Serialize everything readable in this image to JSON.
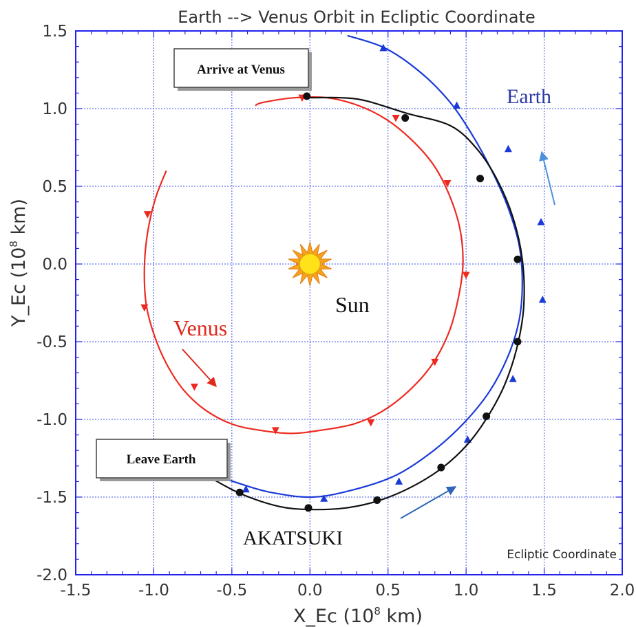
{
  "chart_data": {
    "type": "line",
    "title": "Earth --> Venus Orbit in Ecliptic Coordinate",
    "xlabel": "X_Ec  (10",
    "xlabel_sup": "8",
    "xlabel_unit": " km)",
    "ylabel": "Y_Ec  (10",
    "ylabel_sup": "8",
    "ylabel_unit": " km)",
    "xlim": [
      -1.5,
      2.0
    ],
    "ylim": [
      -2.0,
      1.5
    ],
    "xticks": [
      "-1.5",
      "-1.0",
      "-0.5",
      "0.0",
      "0.5",
      "1.0",
      "1.5",
      "2.0"
    ],
    "yticks": [
      "1.5",
      "1.0",
      "0.5",
      "0.0",
      "-0.5",
      "-1.0",
      "-1.5",
      "-2.0"
    ],
    "grid": true,
    "corner_label": "Ecliptic Coordinate",
    "series": [
      {
        "name": "Earth",
        "color": "#1a3ad8",
        "label_color": "#2a3aa8",
        "points": [
          [
            0.24,
            1.47
          ],
          [
            0.48,
            1.39
          ],
          [
            0.7,
            1.24
          ],
          [
            0.89,
            1.05
          ],
          [
            1.04,
            0.83
          ],
          [
            1.17,
            0.59
          ],
          [
            1.27,
            0.36
          ],
          [
            1.34,
            0.12
          ],
          [
            1.36,
            -0.12
          ],
          [
            1.34,
            -0.36
          ],
          [
            1.27,
            -0.59
          ],
          [
            1.15,
            -0.82
          ],
          [
            0.98,
            -1.03
          ],
          [
            0.78,
            -1.21
          ],
          [
            0.55,
            -1.36
          ],
          [
            0.29,
            -1.45
          ],
          [
            0.02,
            -1.5
          ],
          [
            -0.25,
            -1.47
          ],
          [
            -0.46,
            -1.41
          ],
          [
            -0.63,
            -1.35
          ]
        ],
        "markers": [
          [
            0.47,
            1.39
          ],
          [
            0.94,
            1.02
          ],
          [
            1.27,
            0.74
          ],
          [
            1.48,
            0.27
          ],
          [
            1.49,
            -0.23
          ],
          [
            1.3,
            -0.74
          ],
          [
            1.01,
            -1.13
          ],
          [
            0.57,
            -1.4
          ],
          [
            0.09,
            -1.51
          ],
          [
            -0.41,
            -1.45
          ]
        ],
        "marker_shape": "triangle-up"
      },
      {
        "name": "Venus",
        "color": "#ee2a20",
        "label_color": "#e02a1c",
        "points": [
          [
            -0.92,
            0.6
          ],
          [
            -0.99,
            0.42
          ],
          [
            -1.04,
            0.2
          ],
          [
            -1.06,
            -0.02
          ],
          [
            -1.05,
            -0.25
          ],
          [
            -1.0,
            -0.45
          ],
          [
            -0.92,
            -0.64
          ],
          [
            -0.81,
            -0.81
          ],
          [
            -0.67,
            -0.94
          ],
          [
            -0.5,
            -1.03
          ],
          [
            -0.32,
            -1.07
          ],
          [
            -0.12,
            -1.09
          ],
          [
            0.07,
            -1.07
          ],
          [
            0.28,
            -1.03
          ],
          [
            0.46,
            -0.95
          ],
          [
            0.63,
            -0.82
          ],
          [
            0.78,
            -0.65
          ],
          [
            0.89,
            -0.44
          ],
          [
            0.95,
            -0.22
          ],
          [
            0.98,
            0.0
          ],
          [
            0.96,
            0.23
          ],
          [
            0.89,
            0.45
          ],
          [
            0.79,
            0.64
          ],
          [
            0.65,
            0.8
          ],
          [
            0.49,
            0.93
          ],
          [
            0.31,
            1.02
          ],
          [
            0.11,
            1.07
          ],
          [
            -0.1,
            1.07
          ],
          [
            -0.3,
            1.04
          ],
          [
            -0.35,
            1.02
          ]
        ],
        "markers": [
          [
            -1.04,
            0.32
          ],
          [
            -1.06,
            -0.28
          ],
          [
            -0.74,
            -0.79
          ],
          [
            -0.22,
            -1.07
          ],
          [
            0.39,
            -1.02
          ],
          [
            0.8,
            -0.63
          ],
          [
            1.0,
            -0.07
          ],
          [
            0.88,
            0.52
          ],
          [
            0.55,
            0.94
          ],
          [
            -0.05,
            1.07
          ]
        ],
        "marker_shape": "triangle-down"
      },
      {
        "name": "AKATSUKI",
        "color": "#111111",
        "label_color": "#111111",
        "points": [
          [
            -0.63,
            -1.38
          ],
          [
            -0.44,
            -1.48
          ],
          [
            -0.2,
            -1.56
          ],
          [
            0.0,
            -1.58
          ],
          [
            0.23,
            -1.57
          ],
          [
            0.45,
            -1.52
          ],
          [
            0.66,
            -1.43
          ],
          [
            0.85,
            -1.31
          ],
          [
            1.01,
            -1.16
          ],
          [
            1.14,
            -0.98
          ],
          [
            1.25,
            -0.77
          ],
          [
            1.33,
            -0.52
          ],
          [
            1.37,
            -0.26
          ],
          [
            1.36,
            0.03
          ],
          [
            1.3,
            0.3
          ],
          [
            1.2,
            0.54
          ],
          [
            1.07,
            0.74
          ],
          [
            0.9,
            0.89
          ],
          [
            0.62,
            0.97
          ],
          [
            0.36,
            1.05
          ],
          [
            0.2,
            1.07
          ],
          [
            0.0,
            1.07
          ]
        ],
        "markers": [
          [
            -0.45,
            -1.47
          ],
          [
            -0.01,
            -1.57
          ],
          [
            0.43,
            -1.52
          ],
          [
            0.84,
            -1.31
          ],
          [
            1.13,
            -0.98
          ],
          [
            1.33,
            -0.5
          ],
          [
            1.33,
            0.03
          ],
          [
            1.09,
            0.55
          ],
          [
            0.61,
            0.94
          ],
          [
            -0.02,
            1.08
          ]
        ],
        "marker_shape": "circle"
      }
    ],
    "sun": {
      "label": "Sun",
      "x": 0.0,
      "y": 0.0
    },
    "annotations": [
      {
        "text": "Arrive at Venus"
      },
      {
        "text": "Leave Earth"
      }
    ]
  }
}
